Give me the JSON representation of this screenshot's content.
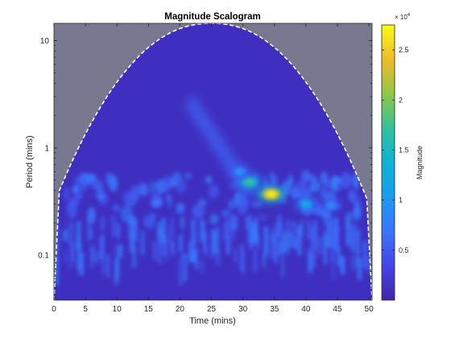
{
  "chart_data": {
    "type": "heatmap",
    "title": "Magnitude Scalogram",
    "xlabel": "Time (mins)",
    "ylabel": "Period (mins)",
    "xlim": [
      0,
      50.5
    ],
    "ylim": [
      0.038,
      14.5
    ],
    "y_scale": "log",
    "x_ticks": [
      0,
      5,
      10,
      15,
      20,
      25,
      30,
      35,
      40,
      45,
      50
    ],
    "x_tick_labels": [
      "0",
      "5",
      "10",
      "15",
      "20",
      "25",
      "30",
      "35",
      "40",
      "45",
      "50"
    ],
    "y_ticks": [
      0.1,
      1,
      10
    ],
    "y_tick_labels": [
      "0.1",
      "1",
      "10"
    ],
    "colorbar": {
      "label": "Magnitude",
      "exponent_label": "× 10",
      "exponent_power": "4",
      "ticks": [
        0.5,
        1,
        1.5,
        2,
        2.5
      ],
      "tick_labels": [
        "0.5",
        "1",
        "1.5",
        "2",
        "2.5"
      ],
      "range": [
        0,
        2.75
      ],
      "colormap": "parula"
    },
    "cone_of_influence": {
      "style": "dashed white",
      "shaded_color": "#787890",
      "peak_time": 25,
      "peak_period": 14.5,
      "edges_reach_period": 0.5
    },
    "hotspots": [
      {
        "time": 34.5,
        "period": 0.37,
        "magnitude": 2.7
      },
      {
        "time": 31,
        "period": 0.48,
        "magnitude": 1.8
      },
      {
        "time": 40,
        "period": 0.3,
        "magnitude": 1.3
      },
      {
        "time": 29.5,
        "period": 0.6,
        "magnitude": 1.0
      },
      {
        "time": 44,
        "period": 0.29,
        "magnitude": 0.9
      }
    ]
  }
}
